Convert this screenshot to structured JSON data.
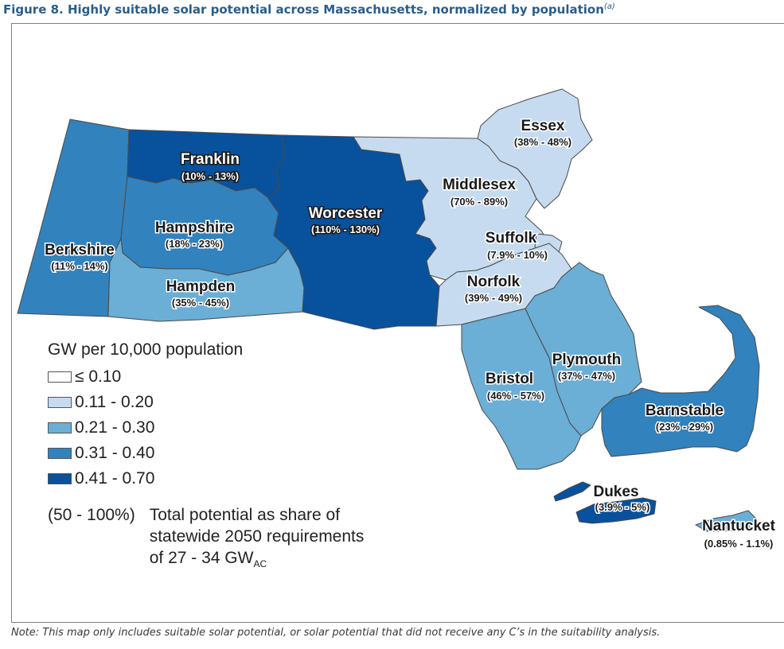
{
  "title": "Figure 8. Highly suitable solar potential across Massachusetts, normalized by population",
  "title_sup": "(a)",
  "legend": {
    "title": "GW per 10,000 population",
    "bins": [
      {
        "label": "≤ 0.10",
        "color": "#ffffff"
      },
      {
        "label": "0.11 - 0.20",
        "color": "#c6dbef"
      },
      {
        "label": "0.21 - 0.30",
        "color": "#6baed6"
      },
      {
        "label": "0.31 - 0.40",
        "color": "#3182bd"
      },
      {
        "label": "0.41 - 0.70",
        "color": "#08519c"
      }
    ],
    "example_range": "(50 - 100%)",
    "example_text_1": "Total potential as share of",
    "example_text_2": "statewide 2050 requirements",
    "example_text_3": "of 27 - 34 GW",
    "example_sub": "AC"
  },
  "counties": [
    {
      "name": "Berkshire",
      "pct": "(11% - 14%)",
      "bin": 3
    },
    {
      "name": "Franklin",
      "pct": "(10% - 13%)",
      "bin": 4
    },
    {
      "name": "Hampshire",
      "pct": "(18% - 23%)",
      "bin": 3
    },
    {
      "name": "Hampden",
      "pct": "(35% - 45%)",
      "bin": 2
    },
    {
      "name": "Worcester",
      "pct": "(110% - 130%)",
      "bin": 4
    },
    {
      "name": "Middlesex",
      "pct": "(70% - 89%)",
      "bin": 1
    },
    {
      "name": "Essex",
      "pct": "(38% - 48%)",
      "bin": 1
    },
    {
      "name": "Suffolk",
      "pct": "(7.9% - 10%)",
      "bin": 1
    },
    {
      "name": "Norfolk",
      "pct": "(39% - 49%)",
      "bin": 1
    },
    {
      "name": "Plymouth",
      "pct": "(37% - 47%)",
      "bin": 2
    },
    {
      "name": "Bristol",
      "pct": "(46% - 57%)",
      "bin": 2
    },
    {
      "name": "Barnstable",
      "pct": "(23% - 29%)",
      "bin": 3
    },
    {
      "name": "Dukes",
      "pct": "(3.9% - 5%)",
      "bin": 4
    },
    {
      "name": "Nantucket",
      "pct": "(0.85% - 1.1%)",
      "bin": 2
    }
  ],
  "note": "Note: This map only includes suitable solar potential, or solar potential that did not receive any C’s in the suitability analysis."
}
